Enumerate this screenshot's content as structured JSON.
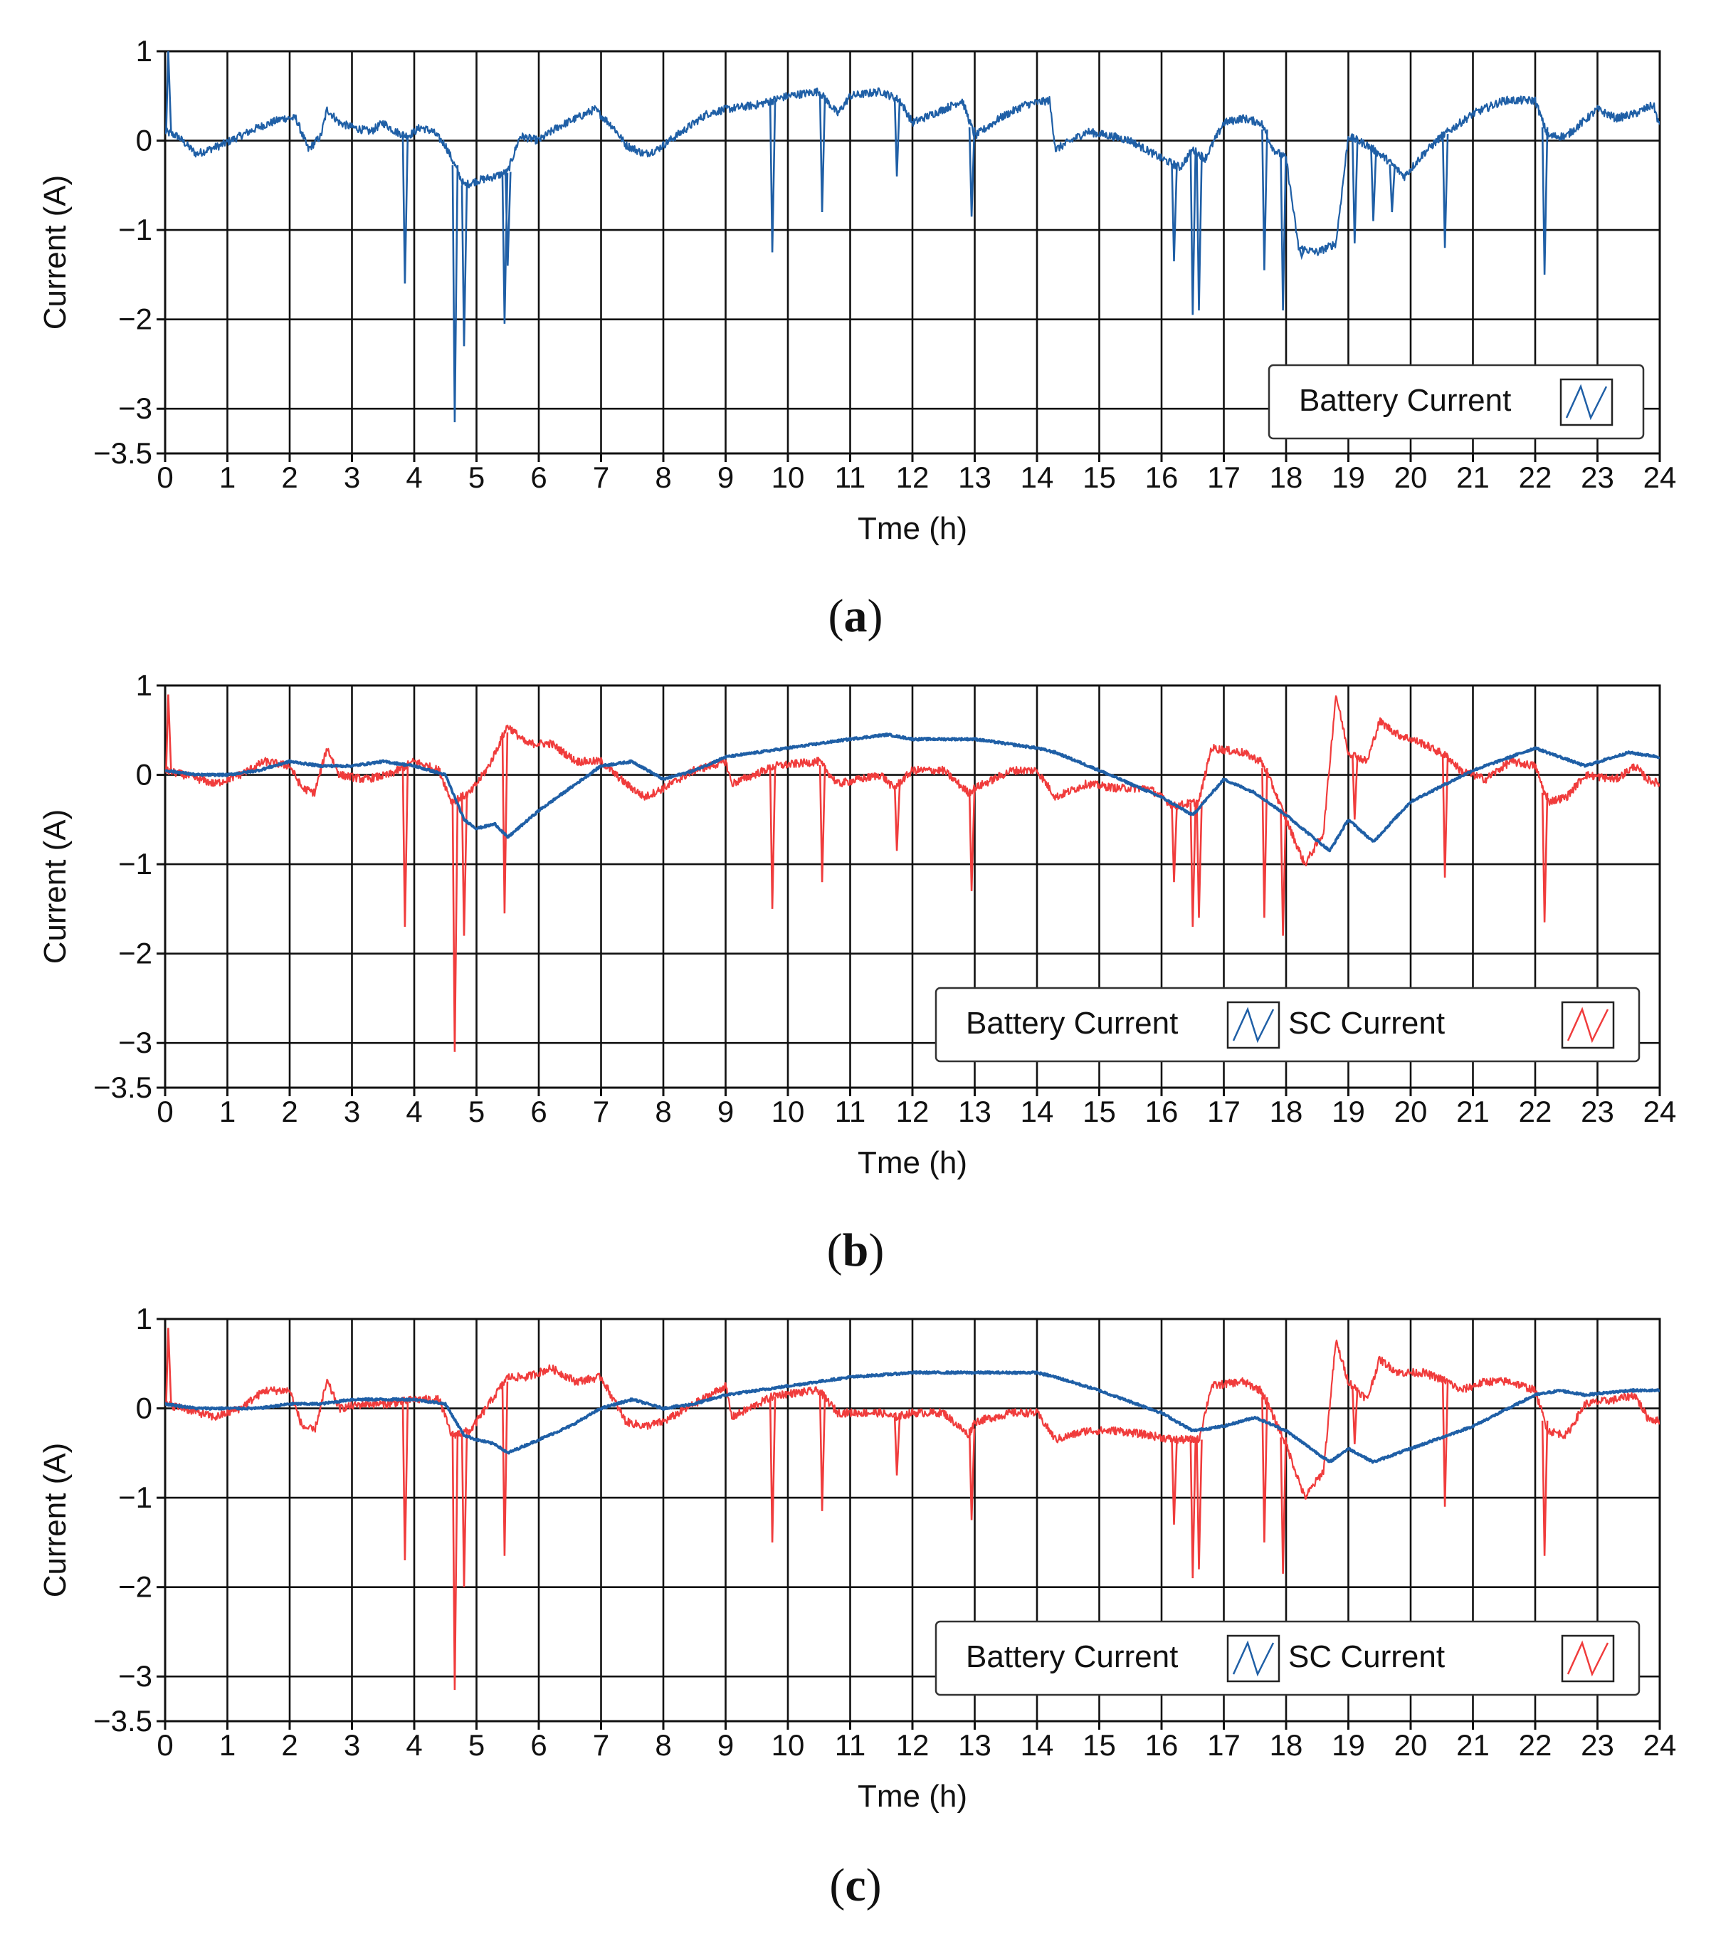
{
  "figure": {
    "panels": [
      {
        "label": "a",
        "legend": [
          {
            "name": "Battery Current",
            "color": "#1f5fa6"
          }
        ]
      },
      {
        "label": "b",
        "legend": [
          {
            "name": "Battery Current",
            "color": "#1f5fa6"
          },
          {
            "name": "SC Current",
            "color": "#f03c3c"
          }
        ]
      },
      {
        "label": "c",
        "legend": [
          {
            "name": "Battery Current",
            "color": "#1f5fa6"
          },
          {
            "name": "SC Current",
            "color": "#f03c3c"
          }
        ]
      }
    ]
  },
  "chart_data": [
    {
      "type": "line",
      "panel": "a",
      "xlabel": "Tme (h)",
      "ylabel": "Current (A)",
      "xlim": [
        0,
        24
      ],
      "ylim": [
        -3.5,
        1
      ],
      "xticks": [
        "0",
        "1",
        "2",
        "3",
        "4",
        "5",
        "6",
        "7",
        "8",
        "9",
        "10",
        "11",
        "12",
        "13",
        "14",
        "15",
        "16",
        "17",
        "18",
        "19",
        "20",
        "21",
        "22",
        "23",
        "24"
      ],
      "yticks": [
        {
          "value": 1,
          "label": "1"
        },
        {
          "value": 0,
          "label": "0"
        },
        {
          "value": -1,
          "label": "−1"
        },
        {
          "value": -2,
          "label": "−2"
        },
        {
          "value": -3,
          "label": "−3"
        },
        {
          "value": -3.5,
          "label": "−3.5"
        }
      ],
      "grid": true,
      "legend_position": "bottom-right",
      "series": [
        {
          "name": "Battery Current",
          "color": "#1f5fa6",
          "x": [
            0,
            0.2,
            0.5,
            0.9,
            1.2,
            1.5,
            1.9,
            2.1,
            2.3,
            2.5,
            2.6,
            2.8,
            3.0,
            3.3,
            3.5,
            3.7,
            3.9,
            4.1,
            4.3,
            4.5,
            4.6,
            4.8,
            5.0,
            5.3,
            5.5,
            5.7,
            6.0,
            6.3,
            6.6,
            6.9,
            7.2,
            7.4,
            7.7,
            7.9,
            8.3,
            8.7,
            9.0,
            9.5,
            10.0,
            10.5,
            10.8,
            11.0,
            11.5,
            11.8,
            12.0,
            12.5,
            12.8,
            13.0,
            13.4,
            13.8,
            14.2,
            14.3,
            14.8,
            15.2,
            15.5,
            16.0,
            16.3,
            16.5,
            16.7,
            17.0,
            17.3,
            17.6,
            17.8,
            18.0,
            18.2,
            18.5,
            18.8,
            19.0,
            19.3,
            19.6,
            19.9,
            20.2,
            20.5,
            20.8,
            21.0,
            21.5,
            22.0,
            22.2,
            22.5,
            23.0,
            23.3,
            23.6,
            23.9,
            24
          ],
          "values": [
            0.1,
            0.05,
            -0.15,
            -0.05,
            0.05,
            0.15,
            0.25,
            0.25,
            -0.1,
            0.05,
            0.35,
            0.2,
            0.15,
            0.1,
            0.2,
            0.1,
            0.05,
            0.15,
            0.1,
            -0.05,
            -0.2,
            -0.5,
            -0.45,
            -0.4,
            -0.35,
            0.05,
            0.0,
            0.15,
            0.25,
            0.35,
            0.15,
            -0.05,
            -0.15,
            -0.1,
            0.1,
            0.3,
            0.35,
            0.4,
            0.5,
            0.55,
            0.3,
            0.5,
            0.55,
            0.45,
            0.2,
            0.35,
            0.45,
            0.05,
            0.25,
            0.4,
            0.45,
            -0.1,
            0.1,
            0.05,
            0.0,
            -0.2,
            -0.3,
            -0.1,
            -0.2,
            0.2,
            0.25,
            0.2,
            -0.1,
            -0.2,
            -1.2,
            -1.25,
            -1.15,
            0.05,
            -0.05,
            -0.2,
            -0.4,
            -0.15,
            0.05,
            0.2,
            0.3,
            0.45,
            0.45,
            0.05,
            0.05,
            0.35,
            0.25,
            0.3,
            0.4,
            0.15
          ],
          "spikes": [
            [
              0.05,
              1.0
            ],
            [
              3.85,
              -1.6
            ],
            [
              4.65,
              -3.15
            ],
            [
              4.8,
              -2.3
            ],
            [
              5.45,
              -2.05
            ],
            [
              5.5,
              -1.4
            ],
            [
              9.75,
              -1.25
            ],
            [
              10.55,
              -0.8
            ],
            [
              11.75,
              -0.4
            ],
            [
              12.95,
              -0.85
            ],
            [
              16.2,
              -1.35
            ],
            [
              16.5,
              -1.95
            ],
            [
              16.6,
              -1.9
            ],
            [
              17.65,
              -1.45
            ],
            [
              17.95,
              -1.9
            ],
            [
              18.25,
              -1.3
            ],
            [
              19.1,
              -1.15
            ],
            [
              19.4,
              -0.9
            ],
            [
              19.7,
              -0.8
            ],
            [
              20.55,
              -1.2
            ],
            [
              22.15,
              -1.5
            ]
          ]
        }
      ]
    },
    {
      "type": "line",
      "panel": "b",
      "xlabel": "Tme (h)",
      "ylabel": "Current (A)",
      "xlim": [
        0,
        24
      ],
      "ylim": [
        -3.5,
        1
      ],
      "xticks": [
        "0",
        "1",
        "2",
        "3",
        "4",
        "5",
        "6",
        "7",
        "8",
        "9",
        "10",
        "11",
        "12",
        "13",
        "14",
        "15",
        "16",
        "17",
        "18",
        "19",
        "20",
        "21",
        "22",
        "23",
        "24"
      ],
      "yticks": [
        {
          "value": 1,
          "label": "1"
        },
        {
          "value": 0,
          "label": "0"
        },
        {
          "value": -1,
          "label": "−1"
        },
        {
          "value": -2,
          "label": "−2"
        },
        {
          "value": -3,
          "label": "−3"
        },
        {
          "value": -3.5,
          "label": "−3.5"
        }
      ],
      "grid": true,
      "legend_position": "bottom-right",
      "series": [
        {
          "name": "Battery Current",
          "color": "#1f5fa6",
          "x": [
            0,
            0.5,
            1.0,
            1.5,
            2.0,
            2.5,
            3.0,
            3.5,
            4.0,
            4.5,
            4.8,
            5.0,
            5.3,
            5.5,
            6.0,
            6.5,
            7.0,
            7.5,
            8.0,
            8.5,
            9.0,
            10.0,
            11.0,
            11.6,
            12.0,
            13.0,
            13.5,
            14.0,
            14.3,
            15.0,
            16.0,
            16.5,
            17.0,
            17.5,
            18.0,
            18.7,
            19.0,
            19.4,
            20.0,
            21.0,
            22.0,
            22.4,
            22.8,
            23.5,
            24
          ],
          "values": [
            0.05,
            0.0,
            0.0,
            0.05,
            0.15,
            0.1,
            0.1,
            0.15,
            0.1,
            0.0,
            -0.5,
            -0.6,
            -0.55,
            -0.7,
            -0.4,
            -0.15,
            0.1,
            0.15,
            -0.05,
            0.05,
            0.2,
            0.3,
            0.4,
            0.45,
            0.4,
            0.4,
            0.35,
            0.3,
            0.25,
            0.05,
            -0.25,
            -0.45,
            -0.05,
            -0.2,
            -0.45,
            -0.85,
            -0.5,
            -0.75,
            -0.3,
            0.05,
            0.3,
            0.2,
            0.1,
            0.25,
            0.2
          ]
        },
        {
          "name": "SC Current",
          "color": "#f03c3c",
          "x": [
            0,
            0.3,
            0.8,
            1.2,
            1.6,
            2.0,
            2.2,
            2.4,
            2.6,
            2.8,
            3.2,
            3.6,
            4.0,
            4.4,
            4.6,
            4.9,
            5.2,
            5.5,
            5.8,
            6.2,
            6.6,
            7.0,
            7.4,
            7.7,
            8.0,
            8.5,
            9.0,
            9.1,
            9.8,
            10.5,
            10.8,
            11.5,
            11.7,
            12.0,
            12.5,
            12.9,
            13.0,
            13.6,
            14.0,
            14.3,
            14.8,
            15.3,
            15.8,
            16.2,
            16.6,
            16.8,
            17.3,
            17.6,
            17.8,
            18.0,
            18.3,
            18.6,
            18.8,
            19.0,
            19.3,
            19.5,
            19.8,
            20.2,
            20.6,
            20.8,
            21.2,
            21.6,
            22.0,
            22.2,
            22.5,
            22.8,
            23.3,
            23.6,
            23.8,
            24
          ],
          "values": [
            0.05,
            0.0,
            -0.1,
            0.0,
            0.15,
            0.1,
            -0.15,
            -0.2,
            0.3,
            0.0,
            -0.05,
            0.0,
            0.15,
            0.05,
            -0.3,
            -0.2,
            0.1,
            0.55,
            0.35,
            0.35,
            0.15,
            0.15,
            -0.1,
            -0.25,
            -0.15,
            0.05,
            0.15,
            -0.1,
            0.1,
            0.15,
            -0.1,
            0.0,
            -0.15,
            0.05,
            0.05,
            -0.2,
            -0.15,
            0.05,
            0.05,
            -0.25,
            -0.1,
            -0.15,
            -0.15,
            -0.35,
            -0.3,
            0.3,
            0.25,
            0.15,
            -0.15,
            -0.5,
            -1.0,
            -0.65,
            0.9,
            0.25,
            0.15,
            0.6,
            0.45,
            0.35,
            0.2,
            0.05,
            -0.05,
            0.15,
            0.1,
            -0.3,
            -0.25,
            0.0,
            -0.05,
            0.1,
            -0.05,
            -0.1
          ],
          "spikes": [
            [
              0.05,
              0.9
            ],
            [
              3.85,
              -1.7
            ],
            [
              4.65,
              -3.1
            ],
            [
              4.8,
              -1.8
            ],
            [
              5.45,
              -1.55
            ],
            [
              9.75,
              -1.5
            ],
            [
              10.55,
              -1.2
            ],
            [
              11.75,
              -0.85
            ],
            [
              12.95,
              -1.3
            ],
            [
              16.2,
              -1.2
            ],
            [
              16.5,
              -1.7
            ],
            [
              16.6,
              -1.6
            ],
            [
              17.65,
              -1.6
            ],
            [
              17.95,
              -1.8
            ],
            [
              19.1,
              -0.5
            ],
            [
              20.55,
              -1.15
            ],
            [
              22.15,
              -1.65
            ]
          ]
        }
      ]
    },
    {
      "type": "line",
      "panel": "c",
      "xlabel": "Tme (h)",
      "ylabel": "Current (A)",
      "xlim": [
        0,
        24
      ],
      "ylim": [
        -3.5,
        1
      ],
      "xticks": [
        "0",
        "1",
        "2",
        "3",
        "4",
        "5",
        "6",
        "7",
        "8",
        "9",
        "10",
        "11",
        "12",
        "13",
        "14",
        "15",
        "16",
        "17",
        "18",
        "19",
        "20",
        "21",
        "22",
        "23",
        "24"
      ],
      "yticks": [
        {
          "value": 1,
          "label": "1"
        },
        {
          "value": 0,
          "label": "0"
        },
        {
          "value": -1,
          "label": "−1"
        },
        {
          "value": -2,
          "label": "−2"
        },
        {
          "value": -3,
          "label": "−3"
        },
        {
          "value": -3.5,
          "label": "−3.5"
        }
      ],
      "grid": true,
      "legend_position": "bottom-right",
      "series": [
        {
          "name": "Battery Current",
          "color": "#1f5fa6",
          "x": [
            0,
            0.5,
            1.0,
            1.5,
            2.0,
            2.5,
            3.0,
            3.5,
            4.0,
            4.5,
            4.8,
            5.0,
            5.3,
            5.5,
            6.0,
            6.5,
            7.0,
            7.5,
            8.0,
            8.5,
            9.0,
            10.0,
            11.0,
            12.0,
            13.0,
            13.5,
            14.0,
            14.3,
            15.0,
            16.0,
            16.5,
            17.0,
            17.5,
            18.0,
            18.7,
            19.0,
            19.4,
            20.0,
            21.0,
            22.0,
            22.4,
            22.8,
            23.5,
            24
          ],
          "values": [
            0.05,
            0.0,
            0.0,
            0.0,
            0.05,
            0.05,
            0.1,
            0.1,
            0.1,
            0.05,
            -0.3,
            -0.35,
            -0.4,
            -0.5,
            -0.35,
            -0.2,
            0.0,
            0.1,
            0.0,
            0.05,
            0.15,
            0.25,
            0.35,
            0.4,
            0.4,
            0.4,
            0.4,
            0.35,
            0.2,
            -0.05,
            -0.25,
            -0.2,
            -0.1,
            -0.25,
            -0.6,
            -0.45,
            -0.6,
            -0.45,
            -0.2,
            0.15,
            0.2,
            0.15,
            0.2,
            0.2
          ]
        },
        {
          "name": "SC Current",
          "color": "#f03c3c",
          "x": [
            0,
            0.3,
            0.8,
            1.2,
            1.6,
            2.0,
            2.2,
            2.4,
            2.6,
            2.8,
            3.2,
            3.6,
            4.0,
            4.4,
            4.6,
            4.9,
            5.2,
            5.5,
            5.8,
            6.2,
            6.6,
            7.0,
            7.4,
            7.7,
            8.0,
            8.5,
            9.0,
            9.1,
            9.8,
            10.5,
            10.8,
            11.5,
            11.7,
            12.0,
            12.5,
            12.9,
            13.0,
            13.6,
            14.0,
            14.3,
            14.8,
            15.3,
            15.8,
            16.2,
            16.6,
            16.8,
            17.3,
            17.6,
            17.8,
            18.0,
            18.3,
            18.6,
            18.8,
            19.0,
            19.3,
            19.5,
            19.8,
            20.2,
            20.6,
            20.8,
            21.2,
            21.6,
            22.0,
            22.2,
            22.5,
            22.8,
            23.3,
            23.6,
            23.8,
            24
          ],
          "values": [
            0.05,
            0.0,
            -0.1,
            0.0,
            0.2,
            0.2,
            -0.2,
            -0.25,
            0.3,
            0.0,
            0.05,
            0.05,
            0.1,
            0.1,
            -0.3,
            -0.25,
            0.05,
            0.35,
            0.35,
            0.45,
            0.3,
            0.35,
            -0.15,
            -0.2,
            -0.15,
            0.05,
            0.25,
            -0.1,
            0.15,
            0.2,
            -0.05,
            -0.05,
            -0.1,
            -0.05,
            -0.05,
            -0.3,
            -0.15,
            -0.05,
            -0.05,
            -0.35,
            -0.25,
            -0.25,
            -0.3,
            -0.35,
            -0.35,
            0.25,
            0.3,
            0.2,
            -0.1,
            -0.4,
            -1.0,
            -0.7,
            0.75,
            0.3,
            0.1,
            0.55,
            0.4,
            0.4,
            0.3,
            0.2,
            0.3,
            0.3,
            0.2,
            -0.25,
            -0.3,
            0.05,
            0.1,
            0.15,
            -0.1,
            -0.15
          ],
          "spikes": [
            [
              0.05,
              0.9
            ],
            [
              3.85,
              -1.7
            ],
            [
              4.65,
              -3.15
            ],
            [
              4.8,
              -2.0
            ],
            [
              5.45,
              -1.65
            ],
            [
              9.75,
              -1.5
            ],
            [
              10.55,
              -1.15
            ],
            [
              11.75,
              -0.75
            ],
            [
              12.95,
              -1.25
            ],
            [
              16.2,
              -1.3
            ],
            [
              16.5,
              -1.9
            ],
            [
              16.6,
              -1.8
            ],
            [
              17.65,
              -1.5
            ],
            [
              17.95,
              -1.85
            ],
            [
              19.1,
              -0.4
            ],
            [
              20.55,
              -1.1
            ],
            [
              22.15,
              -1.65
            ]
          ]
        }
      ]
    }
  ]
}
